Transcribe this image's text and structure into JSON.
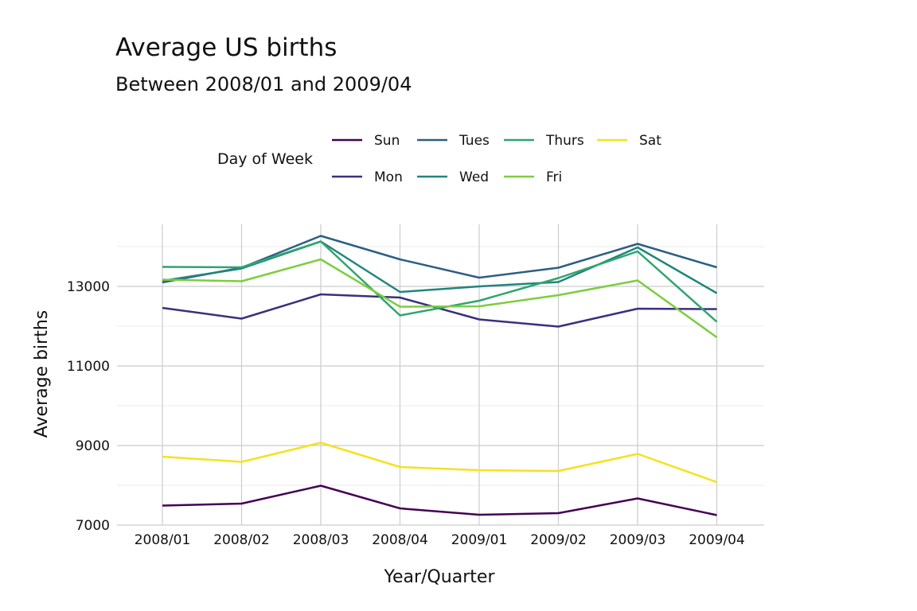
{
  "chart_data": {
    "type": "line",
    "title": "Average US births",
    "subtitle": "Between 2008/01 and 2009/04",
    "xlabel": "Year/Quarter",
    "ylabel": "Average births",
    "categories": [
      "2008/01",
      "2008/02",
      "2008/03",
      "2008/04",
      "2009/01",
      "2009/02",
      "2009/03",
      "2009/04"
    ],
    "ylim": [
      7000,
      14500
    ],
    "yticks": [
      7000,
      9000,
      11000,
      13000
    ],
    "grid": true,
    "legend": {
      "title": "Day of Week",
      "position": "top"
    },
    "series": [
      {
        "name": "Sun",
        "color": "#440154",
        "values": [
          7490,
          7540,
          7990,
          7420,
          7260,
          7300,
          7670,
          7250
        ]
      },
      {
        "name": "Mon",
        "color": "#3b2f7f",
        "values": [
          12460,
          12190,
          12800,
          12720,
          12170,
          11990,
          12440,
          12430
        ]
      },
      {
        "name": "Tues",
        "color": "#2c5f85",
        "values": [
          13100,
          13470,
          14270,
          13680,
          13220,
          13470,
          14070,
          13480
        ]
      },
      {
        "name": "Wed",
        "color": "#21857c",
        "values": [
          13140,
          13450,
          14130,
          12860,
          13000,
          13110,
          13980,
          12830
        ]
      },
      {
        "name": "Thurs",
        "color": "#2fa56f",
        "values": [
          13490,
          13480,
          14130,
          12270,
          12640,
          13210,
          13880,
          12110
        ]
      },
      {
        "name": "Fri",
        "color": "#7ccd3f",
        "values": [
          13170,
          13130,
          13680,
          12490,
          12500,
          12780,
          13150,
          11720
        ]
      },
      {
        "name": "Sat",
        "color": "#f4e21f",
        "values": [
          8720,
          8590,
          9070,
          8460,
          8380,
          8360,
          8790,
          8080
        ]
      }
    ]
  }
}
